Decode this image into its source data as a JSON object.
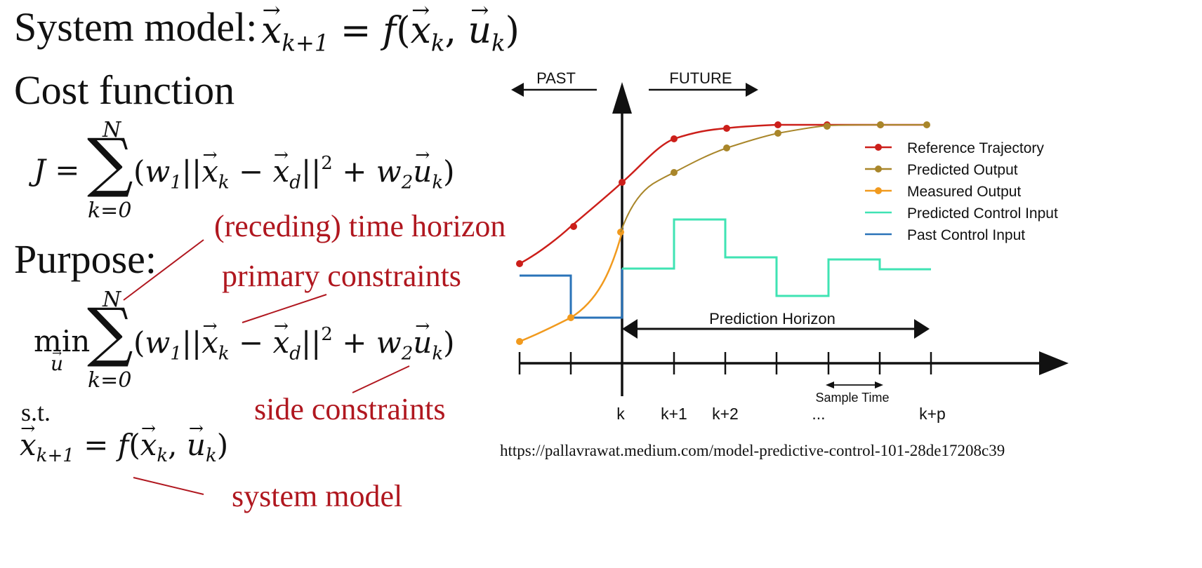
{
  "left": {
    "system_model_title": "System model:",
    "cost_function_title": "Cost function",
    "purpose_title": "Purpose:",
    "st_label": "s.t.",
    "sum_upper": "N",
    "sum_lower": "k=0",
    "min_label": "min",
    "min_var": "u"
  },
  "annotations": {
    "time_horizon": "(receding) time horizon",
    "primary_constraints": "primary constraints",
    "side_constraints": "side constraints",
    "system_model": "system model"
  },
  "diagram": {
    "past_label": "PAST",
    "future_label": "FUTURE",
    "prediction_horizon_label": "Prediction Horizon",
    "sample_time_label": "Sample Time",
    "tick_labels": [
      "k",
      "k+1",
      "k+2",
      "...",
      "k+p"
    ],
    "legend": [
      {
        "label": "Reference Trajectory",
        "color": "#cc1f1a",
        "marker": true
      },
      {
        "label": "Predicted Output",
        "color": "#a9862a",
        "marker": true
      },
      {
        "label": "Measured Output",
        "color": "#f19a1e",
        "marker": true
      },
      {
        "label": "Predicted Control Input",
        "color": "#3fe3b3",
        "marker": false
      },
      {
        "label": "Past Control Input",
        "color": "#2a73b8",
        "marker": false
      }
    ],
    "colors": {
      "reference": "#cc1f1a",
      "predicted_output": "#a9862a",
      "measured_output": "#f19a1e",
      "predicted_control": "#3fe3b3",
      "past_control": "#2a73b8"
    }
  },
  "source_url": "https://pallavrawat.medium.com/model-predictive-control-101-28de17208c39"
}
